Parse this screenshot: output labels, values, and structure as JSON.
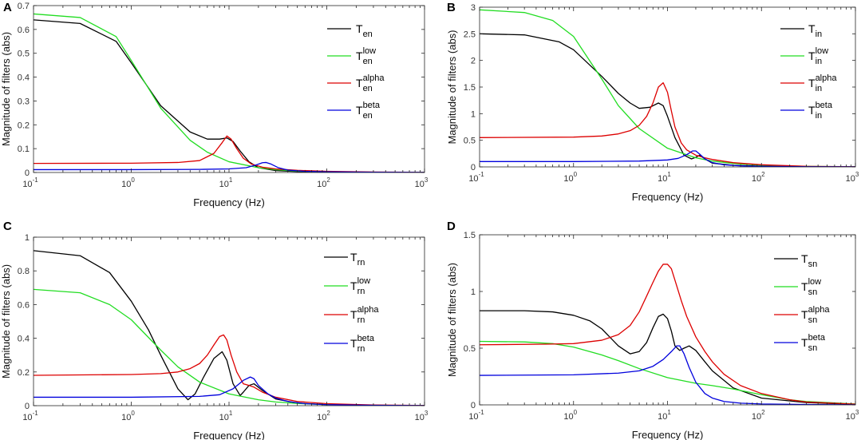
{
  "chart_data": [
    {
      "panel": "A",
      "type": "line",
      "xscale": "log",
      "xlim": [
        0.1,
        1000
      ],
      "ylim": [
        0,
        0.7
      ],
      "yticks": [
        "0",
        "0.1",
        "0.2",
        "0.3",
        "0.4",
        "0.5",
        "0.6",
        "0.7"
      ],
      "xlabel": "Frequency (Hz)",
      "ylabel": "Magnitude of filters (abs)",
      "legend_position": "top-right",
      "series": [
        {
          "name": "T_en",
          "base": "T",
          "sub": "en",
          "sup": "",
          "color": "#000000",
          "x": [
            0.1,
            0.3,
            0.7,
            1,
            2,
            4,
            6,
            8,
            9.5,
            11,
            13,
            16,
            20,
            30,
            50,
            100,
            300,
            1000
          ],
          "y": [
            0.64,
            0.625,
            0.55,
            0.46,
            0.28,
            0.17,
            0.14,
            0.14,
            0.145,
            0.13,
            0.09,
            0.045,
            0.02,
            0.008,
            0.004,
            0.002,
            0.0005,
            0.0001
          ]
        },
        {
          "name": "T_en^low",
          "base": "T",
          "sub": "en",
          "sup": "low",
          "color": "#22dd22",
          "x": [
            0.1,
            0.3,
            0.7,
            1,
            2,
            4,
            6,
            10,
            20,
            30,
            50,
            100,
            300,
            1000
          ],
          "y": [
            0.665,
            0.65,
            0.57,
            0.47,
            0.27,
            0.135,
            0.085,
            0.045,
            0.02,
            0.012,
            0.006,
            0.003,
            0.001,
            0.0003
          ]
        },
        {
          "name": "T_en^alpha",
          "base": "T",
          "sub": "en",
          "sup": "alpha",
          "color": "#dd0000",
          "x": [
            0.1,
            1,
            3,
            5,
            7,
            8.5,
            9.5,
            10.5,
            12,
            14,
            17,
            22,
            30,
            50,
            100,
            300,
            1000
          ],
          "y": [
            0.038,
            0.039,
            0.042,
            0.05,
            0.08,
            0.125,
            0.153,
            0.14,
            0.1,
            0.06,
            0.035,
            0.022,
            0.015,
            0.009,
            0.005,
            0.002,
            0.0005
          ]
        },
        {
          "name": "T_en^beta",
          "base": "T",
          "sub": "en",
          "sup": "beta",
          "color": "#0000dd",
          "x": [
            0.1,
            1,
            5,
            10,
            15,
            19,
            22,
            24,
            27,
            32,
            40,
            60,
            100,
            300,
            1000
          ],
          "y": [
            0.012,
            0.012,
            0.013,
            0.015,
            0.02,
            0.032,
            0.041,
            0.042,
            0.035,
            0.02,
            0.01,
            0.005,
            0.003,
            0.001,
            0.0003
          ]
        }
      ]
    },
    {
      "panel": "B",
      "type": "line",
      "xscale": "log",
      "xlim": [
        0.1,
        1000
      ],
      "ylim": [
        0,
        3
      ],
      "yticks": [
        "0",
        "0.5",
        "1",
        "1.5",
        "2",
        "2.5",
        "3"
      ],
      "xlabel": "Frequency (Hz)",
      "ylabel": "Magnitude of filters (abs)",
      "legend_position": "top-right",
      "series": [
        {
          "name": "T_in",
          "base": "T",
          "sub": "in",
          "sup": "",
          "color": "#000000",
          "x": [
            0.1,
            0.3,
            0.7,
            1,
            2,
            3,
            4,
            5,
            6.5,
            8,
            9,
            10,
            12,
            15,
            18,
            20,
            22,
            25,
            30,
            50,
            100,
            300,
            1000
          ],
          "y": [
            2.5,
            2.48,
            2.35,
            2.2,
            1.7,
            1.38,
            1.2,
            1.1,
            1.12,
            1.2,
            1.15,
            0.95,
            0.55,
            0.22,
            0.15,
            0.18,
            0.22,
            0.15,
            0.07,
            0.03,
            0.015,
            0.005,
            0.002
          ]
        },
        {
          "name": "T_in^low",
          "base": "T",
          "sub": "in",
          "sup": "low",
          "color": "#22dd22",
          "x": [
            0.1,
            0.3,
            0.6,
            1,
            2,
            3,
            5,
            10,
            20,
            30,
            50,
            100,
            300,
            1000
          ],
          "y": [
            2.95,
            2.9,
            2.75,
            2.45,
            1.65,
            1.15,
            0.72,
            0.35,
            0.17,
            0.11,
            0.065,
            0.03,
            0.01,
            0.003
          ]
        },
        {
          "name": "T_in^alpha",
          "base": "T",
          "sub": "in",
          "sup": "alpha",
          "color": "#dd0000",
          "x": [
            0.1,
            1,
            2,
            3,
            4,
            5,
            6,
            7,
            8,
            9,
            10,
            11,
            12,
            14,
            16,
            20,
            25,
            30,
            50,
            100,
            300,
            1000
          ],
          "y": [
            0.55,
            0.56,
            0.58,
            0.62,
            0.68,
            0.78,
            0.95,
            1.2,
            1.5,
            1.58,
            1.4,
            1.05,
            0.75,
            0.45,
            0.32,
            0.22,
            0.17,
            0.14,
            0.08,
            0.04,
            0.01,
            0.004
          ]
        },
        {
          "name": "T_in^beta",
          "base": "T",
          "sub": "in",
          "sup": "beta",
          "color": "#0000dd",
          "x": [
            0.1,
            1,
            5,
            10,
            13,
            16,
            18.5,
            20,
            22,
            25,
            30,
            40,
            60,
            100,
            300,
            1000
          ],
          "y": [
            0.1,
            0.1,
            0.11,
            0.13,
            0.16,
            0.23,
            0.3,
            0.3,
            0.24,
            0.15,
            0.08,
            0.04,
            0.02,
            0.01,
            0.003,
            0.001
          ]
        }
      ]
    },
    {
      "panel": "C",
      "type": "line",
      "xscale": "log",
      "xlim": [
        0.1,
        1000
      ],
      "ylim": [
        0,
        1
      ],
      "yticks": [
        "0",
        "0.2",
        "0.4",
        "0.6",
        "0.8",
        "1"
      ],
      "xlabel": "Frequency (Hz)",
      "ylabel": "Magnitude of filters (abs)",
      "legend_position": "top-right",
      "series": [
        {
          "name": "T_rn",
          "base": "T",
          "sub": "rn",
          "sup": "",
          "color": "#000000",
          "x": [
            0.1,
            0.3,
            0.6,
            1,
            1.5,
            2,
            3,
            3.8,
            4.5,
            5.5,
            7,
            8.5,
            9.5,
            11,
            13,
            14,
            16,
            18,
            22,
            30,
            50,
            100,
            300,
            1000
          ],
          "y": [
            0.92,
            0.89,
            0.79,
            0.62,
            0.45,
            0.3,
            0.1,
            0.035,
            0.07,
            0.17,
            0.28,
            0.32,
            0.27,
            0.13,
            0.06,
            0.08,
            0.12,
            0.13,
            0.09,
            0.04,
            0.015,
            0.006,
            0.002,
            0.0005
          ]
        },
        {
          "name": "T_rn^low",
          "base": "T",
          "sub": "rn",
          "sup": "low",
          "color": "#22dd22",
          "x": [
            0.1,
            0.3,
            0.6,
            1,
            2,
            3,
            5,
            10,
            20,
            30,
            50,
            100,
            300,
            1000
          ],
          "y": [
            0.69,
            0.67,
            0.6,
            0.51,
            0.33,
            0.23,
            0.14,
            0.07,
            0.035,
            0.022,
            0.013,
            0.006,
            0.002,
            0.0007
          ]
        },
        {
          "name": "T_rn^alpha",
          "base": "T",
          "sub": "rn",
          "sup": "alpha",
          "color": "#dd0000",
          "x": [
            0.1,
            1,
            2,
            3,
            4,
            5,
            6,
            7,
            8,
            8.8,
            9.5,
            10.5,
            12,
            14,
            16,
            18,
            22,
            30,
            50,
            100,
            300,
            1000
          ],
          "y": [
            0.18,
            0.185,
            0.19,
            0.2,
            0.22,
            0.25,
            0.3,
            0.36,
            0.41,
            0.42,
            0.39,
            0.3,
            0.2,
            0.13,
            0.12,
            0.11,
            0.08,
            0.05,
            0.025,
            0.012,
            0.004,
            0.001
          ]
        },
        {
          "name": "T_rn^beta",
          "base": "T",
          "sub": "rn",
          "sup": "beta",
          "color": "#0000dd",
          "x": [
            0.1,
            1,
            5,
            8,
            11,
            14,
            16.5,
            18,
            20,
            25,
            30,
            40,
            60,
            100,
            300,
            1000
          ],
          "y": [
            0.05,
            0.05,
            0.055,
            0.065,
            0.1,
            0.15,
            0.17,
            0.16,
            0.12,
            0.07,
            0.045,
            0.025,
            0.012,
            0.006,
            0.002,
            0.0005
          ]
        }
      ]
    },
    {
      "panel": "D",
      "type": "line",
      "xscale": "log",
      "xlim": [
        0.1,
        1000
      ],
      "ylim": [
        0,
        1.5
      ],
      "yticks": [
        "0",
        "0.5",
        "1",
        "1.5"
      ],
      "xlabel": "Frequency (Hz)",
      "ylabel": "Magnitude of filters (abs)",
      "legend_position": "top-right",
      "series": [
        {
          "name": "T_sn",
          "base": "T",
          "sub": "sn",
          "sup": "",
          "color": "#000000",
          "x": [
            0.1,
            0.3,
            0.6,
            1,
            1.5,
            2,
            3,
            4,
            5,
            6,
            7,
            8,
            9,
            10,
            11,
            12,
            13.5,
            15,
            17,
            20,
            25,
            30,
            50,
            100,
            300,
            1000
          ],
          "y": [
            0.83,
            0.83,
            0.82,
            0.79,
            0.74,
            0.67,
            0.52,
            0.45,
            0.47,
            0.55,
            0.68,
            0.78,
            0.8,
            0.76,
            0.65,
            0.52,
            0.48,
            0.5,
            0.52,
            0.48,
            0.38,
            0.3,
            0.15,
            0.06,
            0.02,
            0.005
          ]
        },
        {
          "name": "T_sn^low",
          "base": "T",
          "sub": "sn",
          "sup": "low",
          "color": "#22dd22",
          "x": [
            0.1,
            0.3,
            0.6,
            1,
            2,
            3,
            5,
            10,
            20,
            30,
            50,
            100,
            200,
            300,
            1000
          ],
          "y": [
            0.56,
            0.555,
            0.54,
            0.51,
            0.44,
            0.39,
            0.32,
            0.24,
            0.19,
            0.17,
            0.14,
            0.09,
            0.045,
            0.03,
            0.008
          ]
        },
        {
          "name": "T_sn^alpha",
          "base": "T",
          "sub": "sn",
          "sup": "alpha",
          "color": "#dd0000",
          "x": [
            0.1,
            0.5,
            1,
            2,
            3,
            4,
            5,
            6,
            7,
            8,
            9,
            10,
            11,
            12,
            14,
            16,
            20,
            25,
            30,
            40,
            60,
            100,
            200,
            300,
            1000
          ],
          "y": [
            0.53,
            0.535,
            0.54,
            0.57,
            0.62,
            0.7,
            0.82,
            0.96,
            1.08,
            1.18,
            1.24,
            1.24,
            1.2,
            1.1,
            0.92,
            0.78,
            0.6,
            0.47,
            0.38,
            0.27,
            0.17,
            0.1,
            0.045,
            0.025,
            0.006
          ]
        },
        {
          "name": "T_sn^beta",
          "base": "T",
          "sub": "sn",
          "sup": "beta",
          "color": "#0000dd",
          "x": [
            0.1,
            1,
            3,
            5,
            7,
            9,
            11,
            12.5,
            13.5,
            15,
            17,
            20,
            25,
            30,
            40,
            60,
            100,
            300,
            1000
          ],
          "y": [
            0.26,
            0.265,
            0.28,
            0.3,
            0.34,
            0.4,
            0.47,
            0.52,
            0.52,
            0.45,
            0.33,
            0.2,
            0.1,
            0.06,
            0.03,
            0.015,
            0.008,
            0.003,
            0.001
          ]
        }
      ]
    }
  ]
}
